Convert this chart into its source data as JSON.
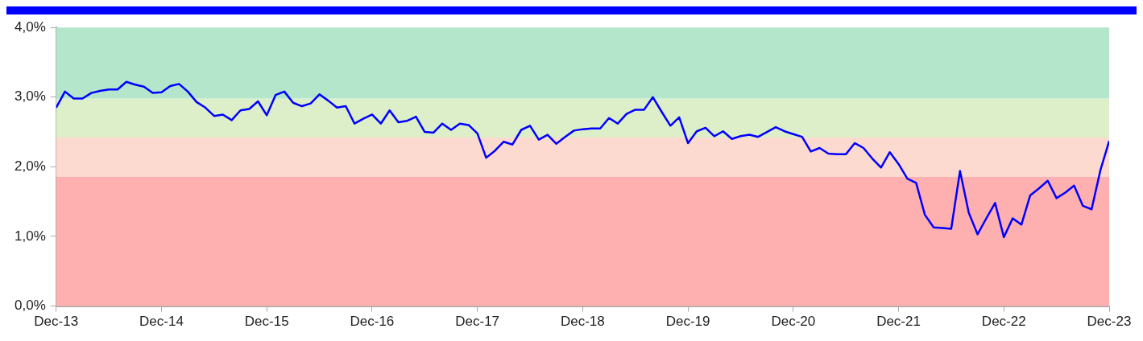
{
  "chart_data": {
    "type": "line",
    "x": [
      "2013-12",
      "2014-01",
      "2014-02",
      "2014-03",
      "2014-04",
      "2014-05",
      "2014-06",
      "2014-07",
      "2014-08",
      "2014-09",
      "2014-10",
      "2014-11",
      "2014-12",
      "2015-01",
      "2015-02",
      "2015-03",
      "2015-04",
      "2015-05",
      "2015-06",
      "2015-07",
      "2015-08",
      "2015-09",
      "2015-10",
      "2015-11",
      "2015-12",
      "2016-01",
      "2016-02",
      "2016-03",
      "2016-04",
      "2016-05",
      "2016-06",
      "2016-07",
      "2016-08",
      "2016-09",
      "2016-10",
      "2016-11",
      "2016-12",
      "2017-01",
      "2017-02",
      "2017-03",
      "2017-04",
      "2017-05",
      "2017-06",
      "2017-07",
      "2017-08",
      "2017-09",
      "2017-10",
      "2017-11",
      "2017-12",
      "2018-01",
      "2018-02",
      "2018-03",
      "2018-04",
      "2018-05",
      "2018-06",
      "2018-07",
      "2018-08",
      "2018-09",
      "2018-10",
      "2018-11",
      "2018-12",
      "2019-01",
      "2019-02",
      "2019-03",
      "2019-04",
      "2019-05",
      "2019-06",
      "2019-07",
      "2019-08",
      "2019-09",
      "2019-10",
      "2019-11",
      "2019-12",
      "2020-01",
      "2020-02",
      "2020-03",
      "2020-04",
      "2020-05",
      "2020-06",
      "2020-07",
      "2020-08",
      "2020-09",
      "2020-10",
      "2020-11",
      "2020-12",
      "2021-01",
      "2021-02",
      "2021-03",
      "2021-04",
      "2021-05",
      "2021-06",
      "2021-07",
      "2021-08",
      "2021-09",
      "2021-10",
      "2021-11",
      "2021-12",
      "2022-01",
      "2022-02",
      "2022-03",
      "2022-04",
      "2022-05",
      "2022-06",
      "2022-07",
      "2022-08",
      "2022-09",
      "2022-10",
      "2022-11",
      "2022-12",
      "2023-01",
      "2023-02",
      "2023-03",
      "2023-04",
      "2023-05",
      "2023-06",
      "2023-07",
      "2023-08",
      "2023-09",
      "2023-10",
      "2023-11",
      "2023-12"
    ],
    "series": [
      {
        "color": "#0000ff",
        "values": [
          2.85,
          3.08,
          2.98,
          2.98,
          3.06,
          3.09,
          3.11,
          3.11,
          3.22,
          3.18,
          3.15,
          3.06,
          3.07,
          3.16,
          3.19,
          3.08,
          2.93,
          2.85,
          2.73,
          2.75,
          2.67,
          2.81,
          2.83,
          2.94,
          2.74,
          3.03,
          3.08,
          2.92,
          2.87,
          2.91,
          3.04,
          2.95,
          2.85,
          2.87,
          2.62,
          2.69,
          2.75,
          2.62,
          2.81,
          2.64,
          2.66,
          2.72,
          2.5,
          2.49,
          2.62,
          2.53,
          2.62,
          2.6,
          2.48,
          2.13,
          2.23,
          2.36,
          2.32,
          2.53,
          2.59,
          2.39,
          2.46,
          2.33,
          2.43,
          2.52,
          2.54,
          2.55,
          2.55,
          2.7,
          2.62,
          2.76,
          2.82,
          2.82,
          3.0,
          2.79,
          2.59,
          2.71,
          2.34,
          2.51,
          2.56,
          2.44,
          2.51,
          2.4,
          2.44,
          2.46,
          2.43,
          2.5,
          2.57,
          2.51,
          2.47,
          2.43,
          2.22,
          2.27,
          2.19,
          2.18,
          2.18,
          2.34,
          2.27,
          2.12,
          1.99,
          2.21,
          2.04,
          1.83,
          1.77,
          1.31,
          1.13,
          1.12,
          1.11,
          1.94,
          1.34,
          1.03,
          1.26,
          1.48,
          0.99,
          1.26,
          1.17,
          1.59,
          1.69,
          1.8,
          1.55,
          1.63,
          1.73,
          1.44,
          1.39,
          1.95,
          2.37
        ]
      }
    ],
    "xlim": [
      "2013-12",
      "2023-12"
    ],
    "xticks": [
      {
        "value": "2013-12",
        "label": "Dec-13"
      },
      {
        "value": "2014-12",
        "label": "Dec-14"
      },
      {
        "value": "2015-12",
        "label": "Dec-15"
      },
      {
        "value": "2016-12",
        "label": "Dec-16"
      },
      {
        "value": "2017-12",
        "label": "Dec-17"
      },
      {
        "value": "2018-12",
        "label": "Dec-18"
      },
      {
        "value": "2019-12",
        "label": "Dec-19"
      },
      {
        "value": "2020-12",
        "label": "Dec-20"
      },
      {
        "value": "2021-12",
        "label": "Dec-21"
      },
      {
        "value": "2022-12",
        "label": "Dec-22"
      },
      {
        "value": "2023-12",
        "label": "Dec-23"
      }
    ],
    "ylim": [
      0,
      4
    ],
    "yticks": [
      {
        "value": 0,
        "label": "0,0%"
      },
      {
        "value": 1,
        "label": "1,0%"
      },
      {
        "value": 2,
        "label": "2,0%"
      },
      {
        "value": 3,
        "label": "3,0%"
      },
      {
        "value": 4,
        "label": "4,0%"
      }
    ],
    "bands": [
      {
        "axis": "y",
        "from": 0,
        "to": 1.86,
        "color": "#feb0b0"
      },
      {
        "axis": "y",
        "from": 1.86,
        "to": 2.42,
        "color": "#fddad0"
      },
      {
        "axis": "y",
        "from": 2.42,
        "to": 2.98,
        "color": "#ddefc9"
      },
      {
        "axis": "y",
        "from": 2.98,
        "to": 4,
        "color": "#b3e6cb"
      }
    ],
    "grid": false,
    "legend": false,
    "marker": "none",
    "line_style": "solid"
  }
}
